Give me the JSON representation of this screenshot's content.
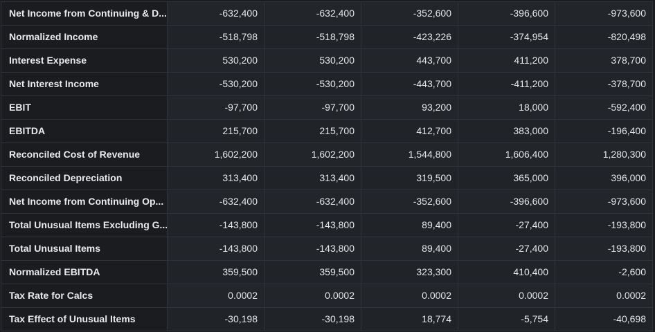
{
  "table": {
    "rows": [
      {
        "label": "Net Income from Continuing & D...",
        "values": [
          "-632,400",
          "-632,400",
          "-352,600",
          "-396,600",
          "-973,600"
        ]
      },
      {
        "label": "Normalized Income",
        "values": [
          "-518,798",
          "-518,798",
          "-423,226",
          "-374,954",
          "-820,498"
        ]
      },
      {
        "label": "Interest Expense",
        "values": [
          "530,200",
          "530,200",
          "443,700",
          "411,200",
          "378,700"
        ]
      },
      {
        "label": "Net Interest Income",
        "values": [
          "-530,200",
          "-530,200",
          "-443,700",
          "-411,200",
          "-378,700"
        ]
      },
      {
        "label": "EBIT",
        "values": [
          "-97,700",
          "-97,700",
          "93,200",
          "18,000",
          "-592,400"
        ]
      },
      {
        "label": "EBITDA",
        "values": [
          "215,700",
          "215,700",
          "412,700",
          "383,000",
          "-196,400"
        ]
      },
      {
        "label": "Reconciled Cost of Revenue",
        "values": [
          "1,602,200",
          "1,602,200",
          "1,544,800",
          "1,606,400",
          "1,280,300"
        ]
      },
      {
        "label": "Reconciled Depreciation",
        "values": [
          "313,400",
          "313,400",
          "319,500",
          "365,000",
          "396,000"
        ]
      },
      {
        "label": "Net Income from Continuing Op...",
        "values": [
          "-632,400",
          "-632,400",
          "-352,600",
          "-396,600",
          "-973,600"
        ]
      },
      {
        "label": "Total Unusual Items Excluding G...",
        "values": [
          "-143,800",
          "-143,800",
          "89,400",
          "-27,400",
          "-193,800"
        ]
      },
      {
        "label": "Total Unusual Items",
        "values": [
          "-143,800",
          "-143,800",
          "89,400",
          "-27,400",
          "-193,800"
        ]
      },
      {
        "label": "Normalized EBITDA",
        "values": [
          "359,500",
          "359,500",
          "323,300",
          "410,400",
          "-2,600"
        ]
      },
      {
        "label": "Tax Rate for Calcs",
        "values": [
          "0.0002",
          "0.0002",
          "0.0002",
          "0.0002",
          "0.0002"
        ]
      },
      {
        "label": "Tax Effect of Unusual Items",
        "values": [
          "-30,198",
          "-30,198",
          "18,774",
          "-5,754",
          "-40,698"
        ]
      }
    ]
  }
}
